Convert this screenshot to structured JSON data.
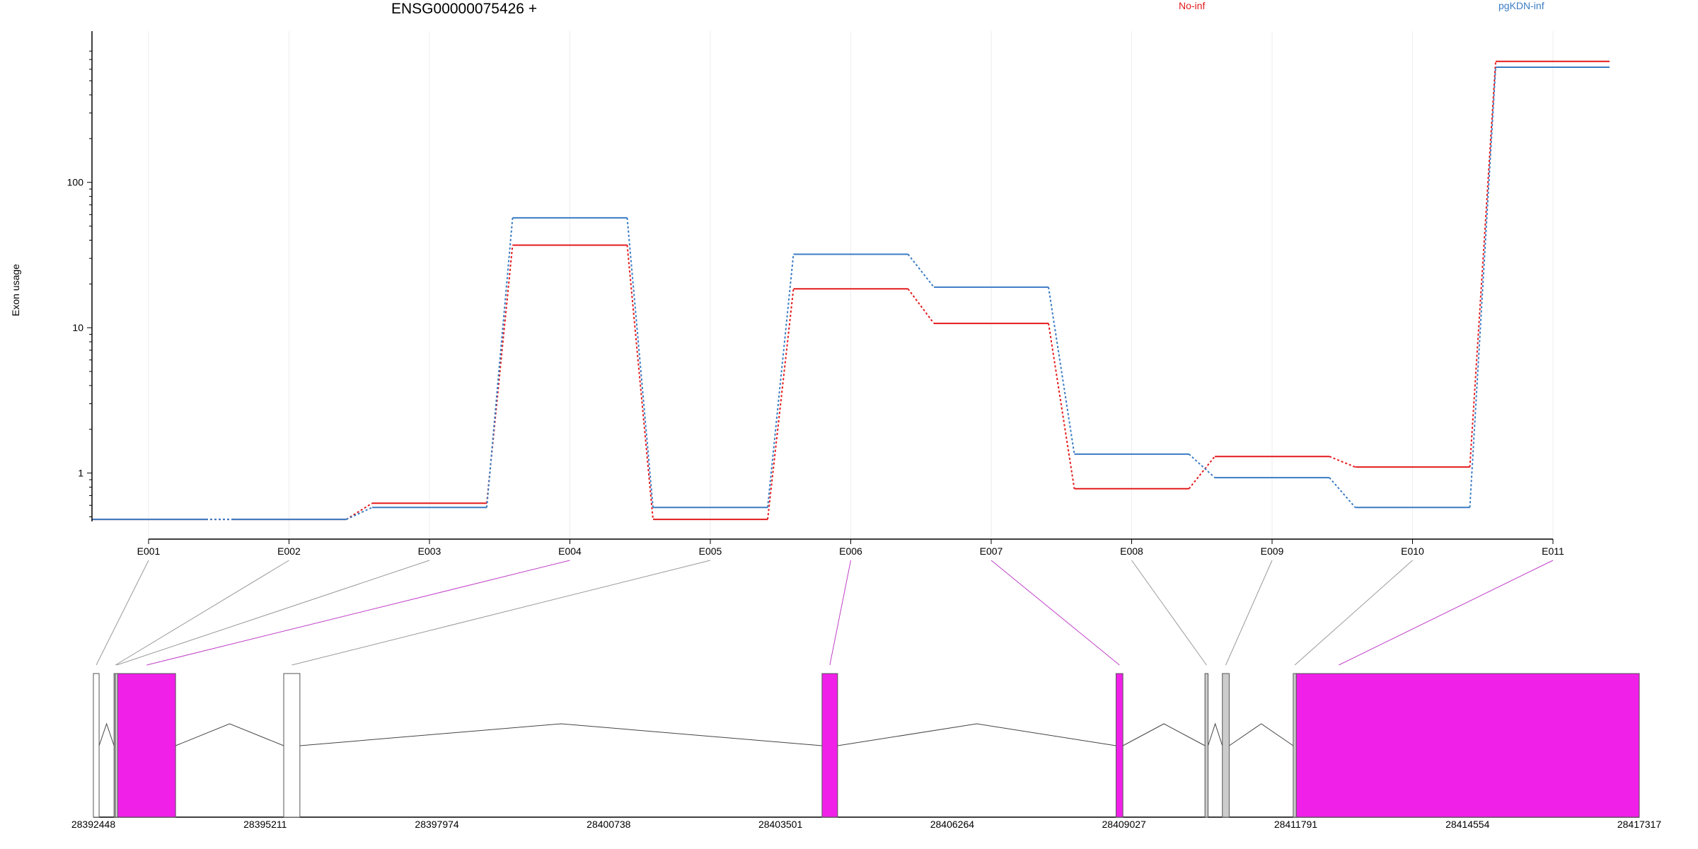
{
  "chart_data": {
    "type": "line",
    "title": "ENSG00000075426 +",
    "ylabel": "Exon usage",
    "xlabel": "",
    "y_scale": "log",
    "y_ticks": [
      1,
      10,
      100
    ],
    "y_tick_labels": [
      "1",
      "10",
      "100"
    ],
    "ylim": [
      0.47,
      820
    ],
    "grid": "vertical-lines",
    "legend_placement": "top",
    "categories": [
      "E001",
      "E002",
      "E003",
      "E004",
      "E005",
      "E006",
      "E007",
      "E008",
      "E009",
      "E010",
      "E011"
    ],
    "series": [
      {
        "name": "No-inf",
        "color": "#e31a1c",
        "values": [
          0.48,
          0.48,
          0.62,
          37,
          0.48,
          18.5,
          10.7,
          0.78,
          1.3,
          1.1,
          680
        ]
      },
      {
        "name": "pgKDN-inf",
        "color": "#3a7cc4",
        "values": [
          0.48,
          0.48,
          0.58,
          57,
          0.58,
          32,
          19,
          1.35,
          0.93,
          0.58,
          620
        ]
      }
    ],
    "gene_model": {
      "coordinate_labels": [
        "28392448",
        "28395211",
        "28397974",
        "28400738",
        "28403501",
        "28406264",
        "28409027",
        "28411791",
        "28414554",
        "28417317"
      ],
      "coord_range": [
        28392448,
        28417317
      ],
      "exons": [
        {
          "id": "E001",
          "start": 28392448,
          "end": 28392540,
          "fill": "white",
          "link_color": "gray"
        },
        {
          "id": "E002",
          "start": 28392780,
          "end": 28392800,
          "fill": "gray",
          "link_color": "gray"
        },
        {
          "id": "E003",
          "start": 28392800,
          "end": 28392820,
          "fill": "gray",
          "link_color": "gray"
        },
        {
          "id": "E004",
          "start": 28392840,
          "end": 28393770,
          "fill": "magenta",
          "link_color": "magenta"
        },
        {
          "id": "E005",
          "start": 28395510,
          "end": 28395770,
          "fill": "white",
          "link_color": "gray"
        },
        {
          "id": "E006",
          "start": 28404170,
          "end": 28404420,
          "fill": "magenta",
          "link_color": "magenta"
        },
        {
          "id": "E007",
          "start": 28408900,
          "end": 28409010,
          "fill": "magenta",
          "link_color": "magenta"
        },
        {
          "id": "E008",
          "start": 28410330,
          "end": 28410380,
          "fill": "gray",
          "link_color": "gray"
        },
        {
          "id": "E009",
          "start": 28410610,
          "end": 28410720,
          "fill": "gray",
          "link_color": "gray"
        },
        {
          "id": "E010",
          "start": 28411750,
          "end": 28411800,
          "fill": "gray",
          "link_color": "gray"
        },
        {
          "id": "E011",
          "start": 28411800,
          "end": 28417317,
          "fill": "magenta",
          "link_color": "magenta"
        }
      ]
    }
  },
  "colors": {
    "no_inf": "#e31a1c",
    "pgkdn_inf": "#3a7cc4",
    "magenta": "#f020e8",
    "gray_exon": "#cccccc"
  }
}
